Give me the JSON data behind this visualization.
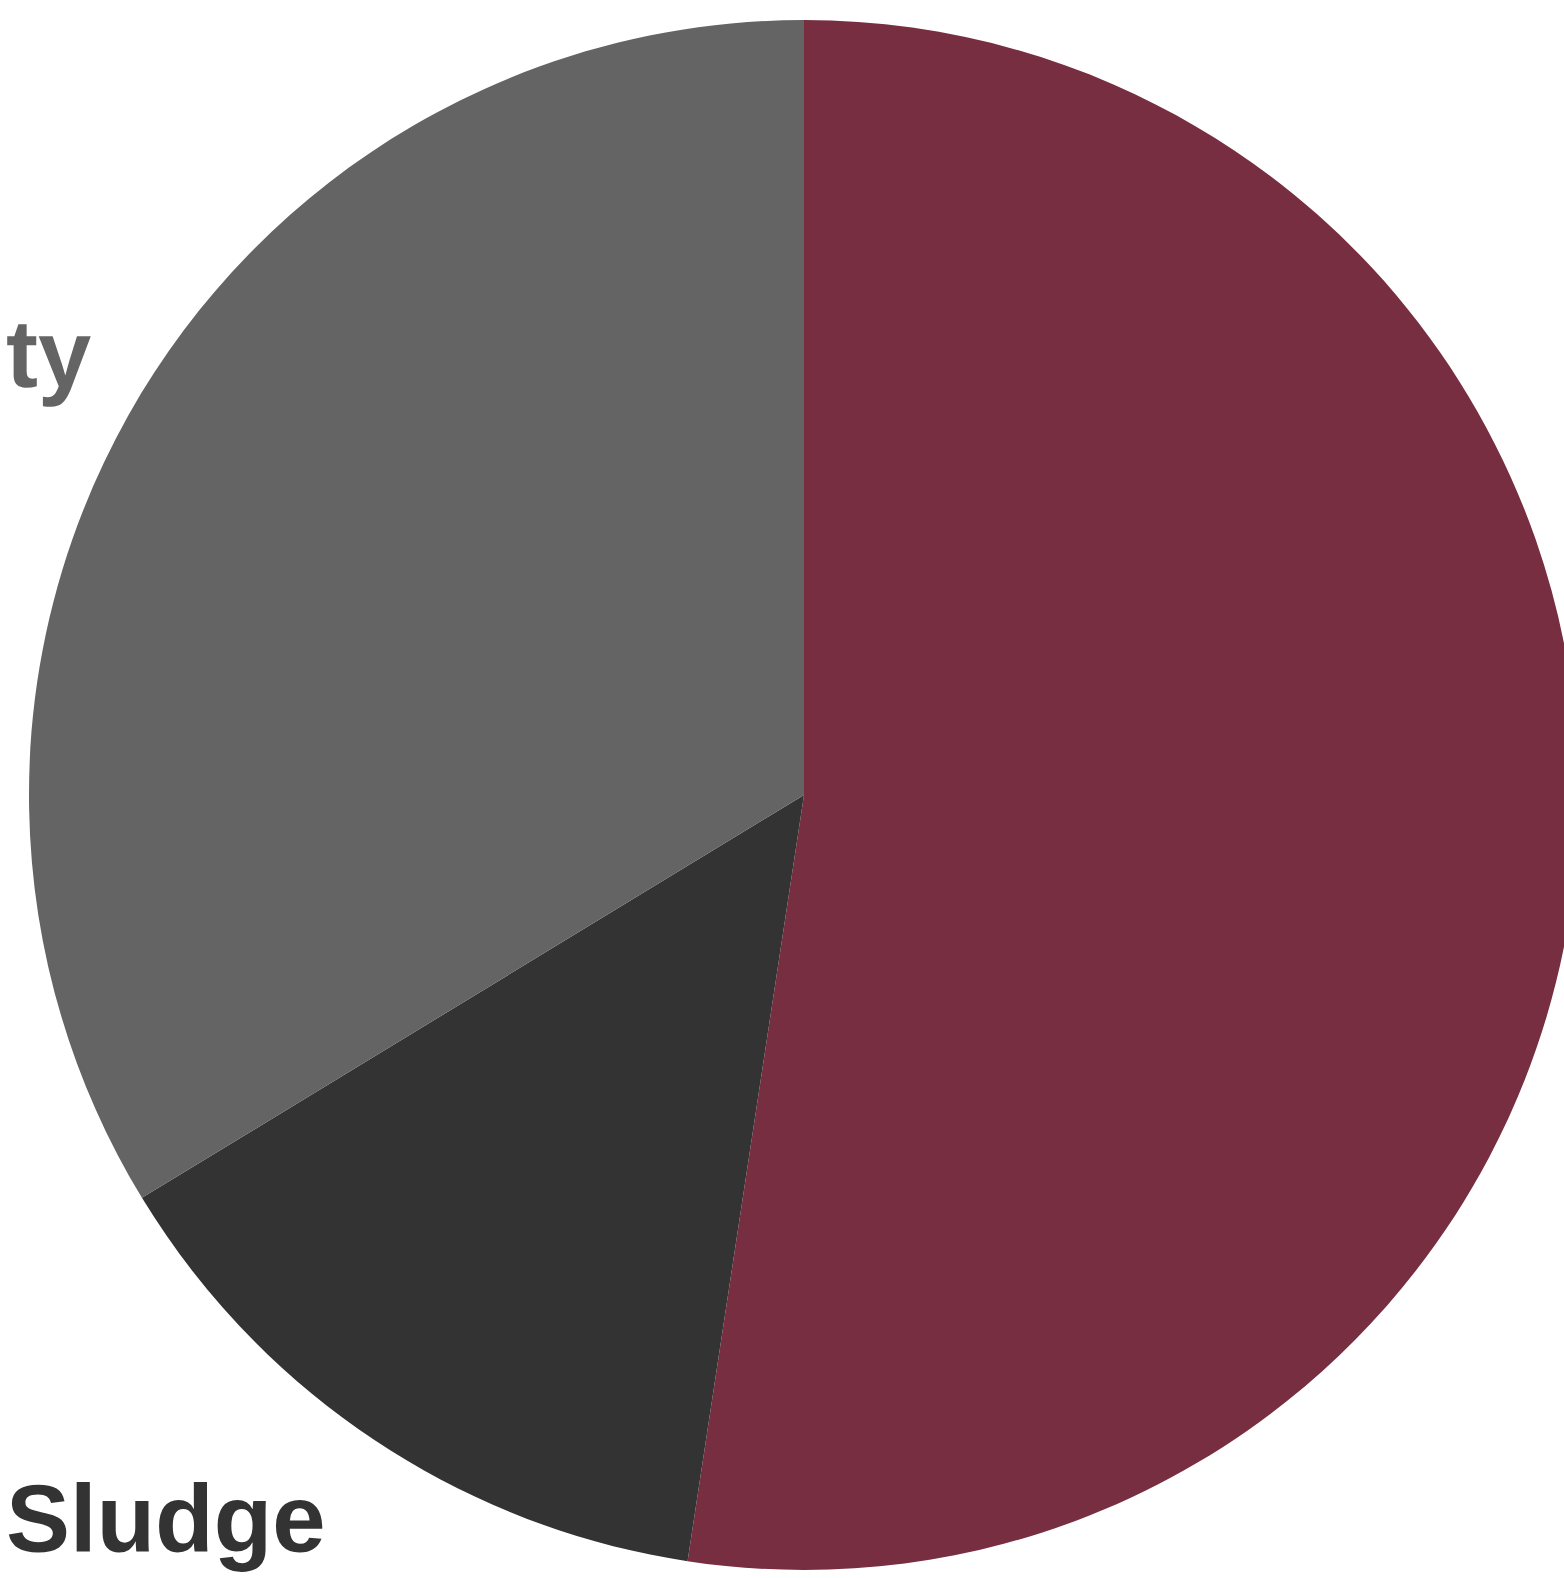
{
  "chart_data": {
    "type": "pie",
    "categories": [
      null,
      "Sludge",
      "ty"
    ],
    "values": [
      52.4,
      13.9,
      33.7
    ],
    "colors": [
      "#772e40",
      "#333333",
      "#646464"
    ]
  }
}
